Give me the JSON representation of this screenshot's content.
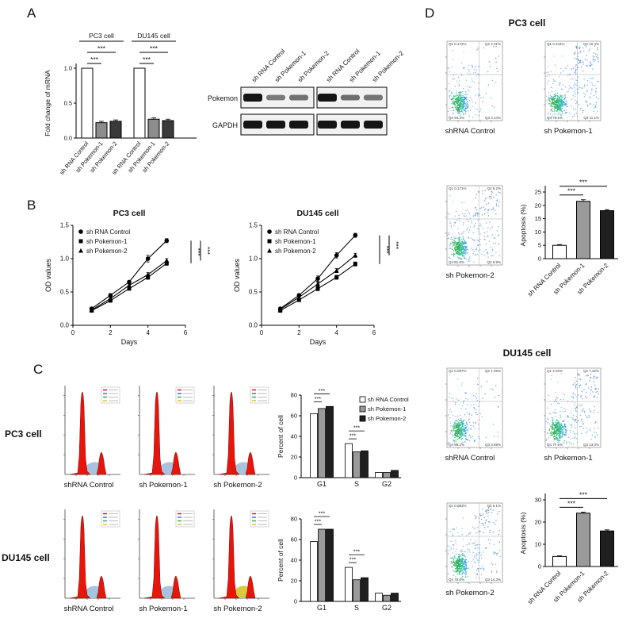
{
  "labels": {
    "A": "A",
    "B": "B",
    "C": "C",
    "D": "D"
  },
  "blot": {
    "lane_labels": [
      "sh RNA Control",
      "sh Pokemon-1",
      "sh Pokemon-2",
      "sh RNA Control",
      "sh Pokemon-1",
      "sh Pokemon-2"
    ],
    "row_labels": [
      "Pokemon",
      "GAPDH"
    ],
    "pokemon_band_intensity": [
      1,
      0.35,
      0.4,
      1,
      0.42,
      0.38
    ],
    "gapdh_band_intensity": [
      1,
      1,
      1,
      1,
      1,
      1
    ]
  },
  "chart_data": [
    {
      "id": "a-qpcr",
      "type": "bar",
      "ylabel": "Fold change of mRNA",
      "ylim": [
        0,
        1.0
      ],
      "yticks": [
        0,
        0.5,
        1
      ],
      "group_labels": [
        "PC3 cell",
        "DU145 cell"
      ],
      "categories": [
        "sh RNA Control",
        "sh Pokemon-1",
        "sh Pokemon-2",
        "sh RNA Control",
        "sh Pokemon-1",
        "sh Pokemon-2"
      ],
      "values": [
        1.0,
        0.22,
        0.24,
        1.0,
        0.27,
        0.25
      ],
      "errors": [
        0,
        0.02,
        0.02,
        0,
        0.02,
        0.02
      ],
      "bar_colors": [
        "#ffffff",
        "#8c8c8c",
        "#3a3a3a",
        "#ffffff",
        "#8c8c8c",
        "#3a3a3a"
      ],
      "significance": [
        {
          "from": 0,
          "to": 1,
          "label": "***"
        },
        {
          "from": 0,
          "to": 2,
          "label": "***"
        },
        {
          "from": 3,
          "to": 4,
          "label": "***"
        },
        {
          "from": 3,
          "to": 5,
          "label": "***"
        }
      ]
    },
    {
      "id": "b-pc3",
      "type": "line",
      "title": "PC3 cell",
      "xlabel": "Days",
      "ylabel": "OD values",
      "xlim": [
        0,
        6
      ],
      "ylim": [
        0,
        1.5
      ],
      "xticks": [
        0,
        2,
        4,
        6
      ],
      "yticks": [
        0,
        0.5,
        1,
        1.5
      ],
      "x": [
        1,
        2,
        3,
        4,
        5
      ],
      "series": [
        {
          "name": "sh RNA Control",
          "marker": "circle",
          "values": [
            0.25,
            0.45,
            0.65,
            1.0,
            1.27
          ],
          "errors": [
            0,
            0.02,
            0.02,
            0.05,
            0.03
          ]
        },
        {
          "name": "sh Pokemon-1",
          "marker": "square",
          "values": [
            0.22,
            0.37,
            0.55,
            0.72,
            0.93
          ],
          "errors": [
            0,
            0.02,
            0.02,
            0.03,
            0.03
          ]
        },
        {
          "name": "sh Pokemon-2",
          "marker": "triangle",
          "values": [
            0.23,
            0.4,
            0.6,
            0.76,
            0.97
          ],
          "errors": [
            0,
            0.02,
            0.02,
            0.03,
            0.03
          ]
        }
      ],
      "significance": [
        "***",
        "***"
      ]
    },
    {
      "id": "b-du145",
      "type": "line",
      "title": "DU145 cell",
      "xlabel": "Days",
      "ylabel": "OD values",
      "xlim": [
        0,
        6
      ],
      "ylim": [
        0,
        1.5
      ],
      "xticks": [
        0,
        2,
        4,
        6
      ],
      "yticks": [
        0,
        0.5,
        1,
        1.5
      ],
      "x": [
        1,
        2,
        3,
        4,
        5
      ],
      "series": [
        {
          "name": "sh RNA Control",
          "marker": "circle",
          "values": [
            0.25,
            0.45,
            0.7,
            1.05,
            1.35
          ],
          "errors": [
            0,
            0.02,
            0.04,
            0.04,
            0.03
          ]
        },
        {
          "name": "sh Pokemon-1",
          "marker": "square",
          "values": [
            0.22,
            0.38,
            0.55,
            0.72,
            0.92
          ],
          "errors": [
            0,
            0.02,
            0.03,
            0.03,
            0.03
          ]
        },
        {
          "name": "sh Pokemon-2",
          "marker": "triangle",
          "values": [
            0.24,
            0.42,
            0.62,
            0.82,
            1.05
          ],
          "errors": [
            0,
            0.02,
            0.03,
            0.03,
            0.03
          ]
        }
      ],
      "significance": [
        "***",
        "***"
      ]
    },
    {
      "id": "c-pc3-cycle",
      "type": "bar",
      "ylabel": "Percent of cell",
      "ylim": [
        0,
        80
      ],
      "yticks": [
        0,
        20,
        40,
        60,
        80
      ],
      "categories": [
        "G1",
        "S",
        "G2"
      ],
      "series": [
        {
          "name": "sh RNA Control",
          "color": "#ffffff",
          "values": [
            62,
            33,
            5
          ]
        },
        {
          "name": "sh Pokemon-1",
          "color": "#9a9a9a",
          "values": [
            67,
            25,
            5
          ]
        },
        {
          "name": "sh Pokemon-2",
          "color": "#1f1f1f",
          "values": [
            69,
            26,
            7
          ]
        }
      ],
      "significance": [
        {
          "cat": 0,
          "label": "***"
        },
        {
          "cat": 1,
          "label": "***"
        }
      ],
      "legend": true
    },
    {
      "id": "c-du145-cycle",
      "type": "bar",
      "ylabel": "Percent of cell",
      "ylim": [
        0,
        80
      ],
      "yticks": [
        0,
        20,
        40,
        60,
        80
      ],
      "categories": [
        "G1",
        "S",
        "G2"
      ],
      "series": [
        {
          "name": "sh RNA Control",
          "color": "#ffffff",
          "values": [
            58,
            33,
            8
          ]
        },
        {
          "name": "sh Pokemon-1",
          "color": "#9a9a9a",
          "values": [
            70,
            21,
            6
          ]
        },
        {
          "name": "sh Pokemon-2",
          "color": "#1f1f1f",
          "values": [
            70,
            23,
            8
          ]
        }
      ],
      "significance": [
        {
          "cat": 0,
          "label": "***"
        },
        {
          "cat": 1,
          "label": "***"
        }
      ],
      "legend": false
    },
    {
      "id": "d-pc3-apoptosis",
      "type": "bar",
      "ylabel": "Apoptosis (%)",
      "ylim": [
        0,
        25
      ],
      "yticks": [
        0,
        5,
        10,
        15,
        20,
        25
      ],
      "categories": [
        "sh RNA Control",
        "sh Pokemon-1",
        "sh Pokemon-2"
      ],
      "values": [
        5,
        21.5,
        18
      ],
      "errors": [
        0.3,
        0.6,
        0.4
      ],
      "bar_colors": [
        "#ffffff",
        "#9a9a9a",
        "#1f1f1f"
      ],
      "significance": [
        {
          "from": 0,
          "to": 1,
          "label": "***"
        },
        {
          "from": 0,
          "to": 2,
          "label": "***"
        }
      ]
    },
    {
      "id": "d-du145-apoptosis",
      "type": "bar",
      "ylabel": "Apoptosis (%)",
      "ylim": [
        0,
        30
      ],
      "yticks": [
        0,
        10,
        20,
        30
      ],
      "categories": [
        "sh RNA Control",
        "sh Pokemon-1",
        "sh Pokemon-2"
      ],
      "values": [
        4.5,
        24,
        16
      ],
      "errors": [
        0.3,
        0.5,
        0.5
      ],
      "bar_colors": [
        "#ffffff",
        "#9a9a9a",
        "#1f1f1f"
      ],
      "significance": [
        {
          "from": 0,
          "to": 1,
          "label": "***"
        },
        {
          "from": 0,
          "to": 2,
          "label": "***"
        }
      ]
    },
    {
      "id": "c-histograms",
      "type": "flow-histogram-set",
      "rows": [
        {
          "label": "PC3 cell",
          "items": [
            {
              "caption": "shRNA Control"
            },
            {
              "caption": "sh Pokemon-1"
            },
            {
              "caption": "sh Pokemon-2"
            }
          ]
        },
        {
          "label": "DU145 cell",
          "items": [
            {
              "caption": "shRNA Control"
            },
            {
              "caption": "sh Pokemon-1"
            },
            {
              "caption": "sh Pokemon-2",
              "s_color": "#ddc93f"
            }
          ]
        }
      ]
    },
    {
      "id": "d-scatters",
      "type": "flow-scatter-set",
      "sections": [
        {
          "title": "PC3 cell",
          "plots": [
            {
              "caption": "shRNA Control",
              "apoptosis": 2,
              "quadrants": {
                "Q1": "0.172%",
                "Q2": "2.01%",
                "Q3": "3.14%",
                "Q4": "94.2%"
              }
            },
            {
              "caption": "sh Pokemon-1",
              "apoptosis": 10,
              "quadrants": {
                "Q1": "0.244%",
                "Q2": "10.4%",
                "Q3": "11.1%",
                "Q4": "78.1%"
              }
            },
            {
              "caption": "sh Pokemon-2",
              "apoptosis": 8,
              "quadrants": {
                "Q1": "0.171%",
                "Q2": "9.2%",
                "Q3": "8.9%",
                "Q4": "81.6%"
              }
            }
          ]
        },
        {
          "title": "DU145 cell",
          "plots": [
            {
              "caption": "shRNA Control",
              "apoptosis": 1.5,
              "quadrants": {
                "Q1": "0.097%",
                "Q2": "1.05%",
                "Q3": "3.69%",
                "Q4": "95.1%"
              }
            },
            {
              "caption": "sh Pokemon-1",
              "apoptosis": 9,
              "quadrants": {
                "Q1": "2.02%",
                "Q2": "7.32%",
                "Q3": "13.0%",
                "Q4": "77.6%"
              }
            },
            {
              "caption": "sh Pokemon-2",
              "apoptosis": 7,
              "quadrants": {
                "Q1": "0.093%",
                "Q2": "6.1%",
                "Q3": "14.3%",
                "Q4": "79.6%"
              }
            }
          ]
        }
      ]
    }
  ]
}
